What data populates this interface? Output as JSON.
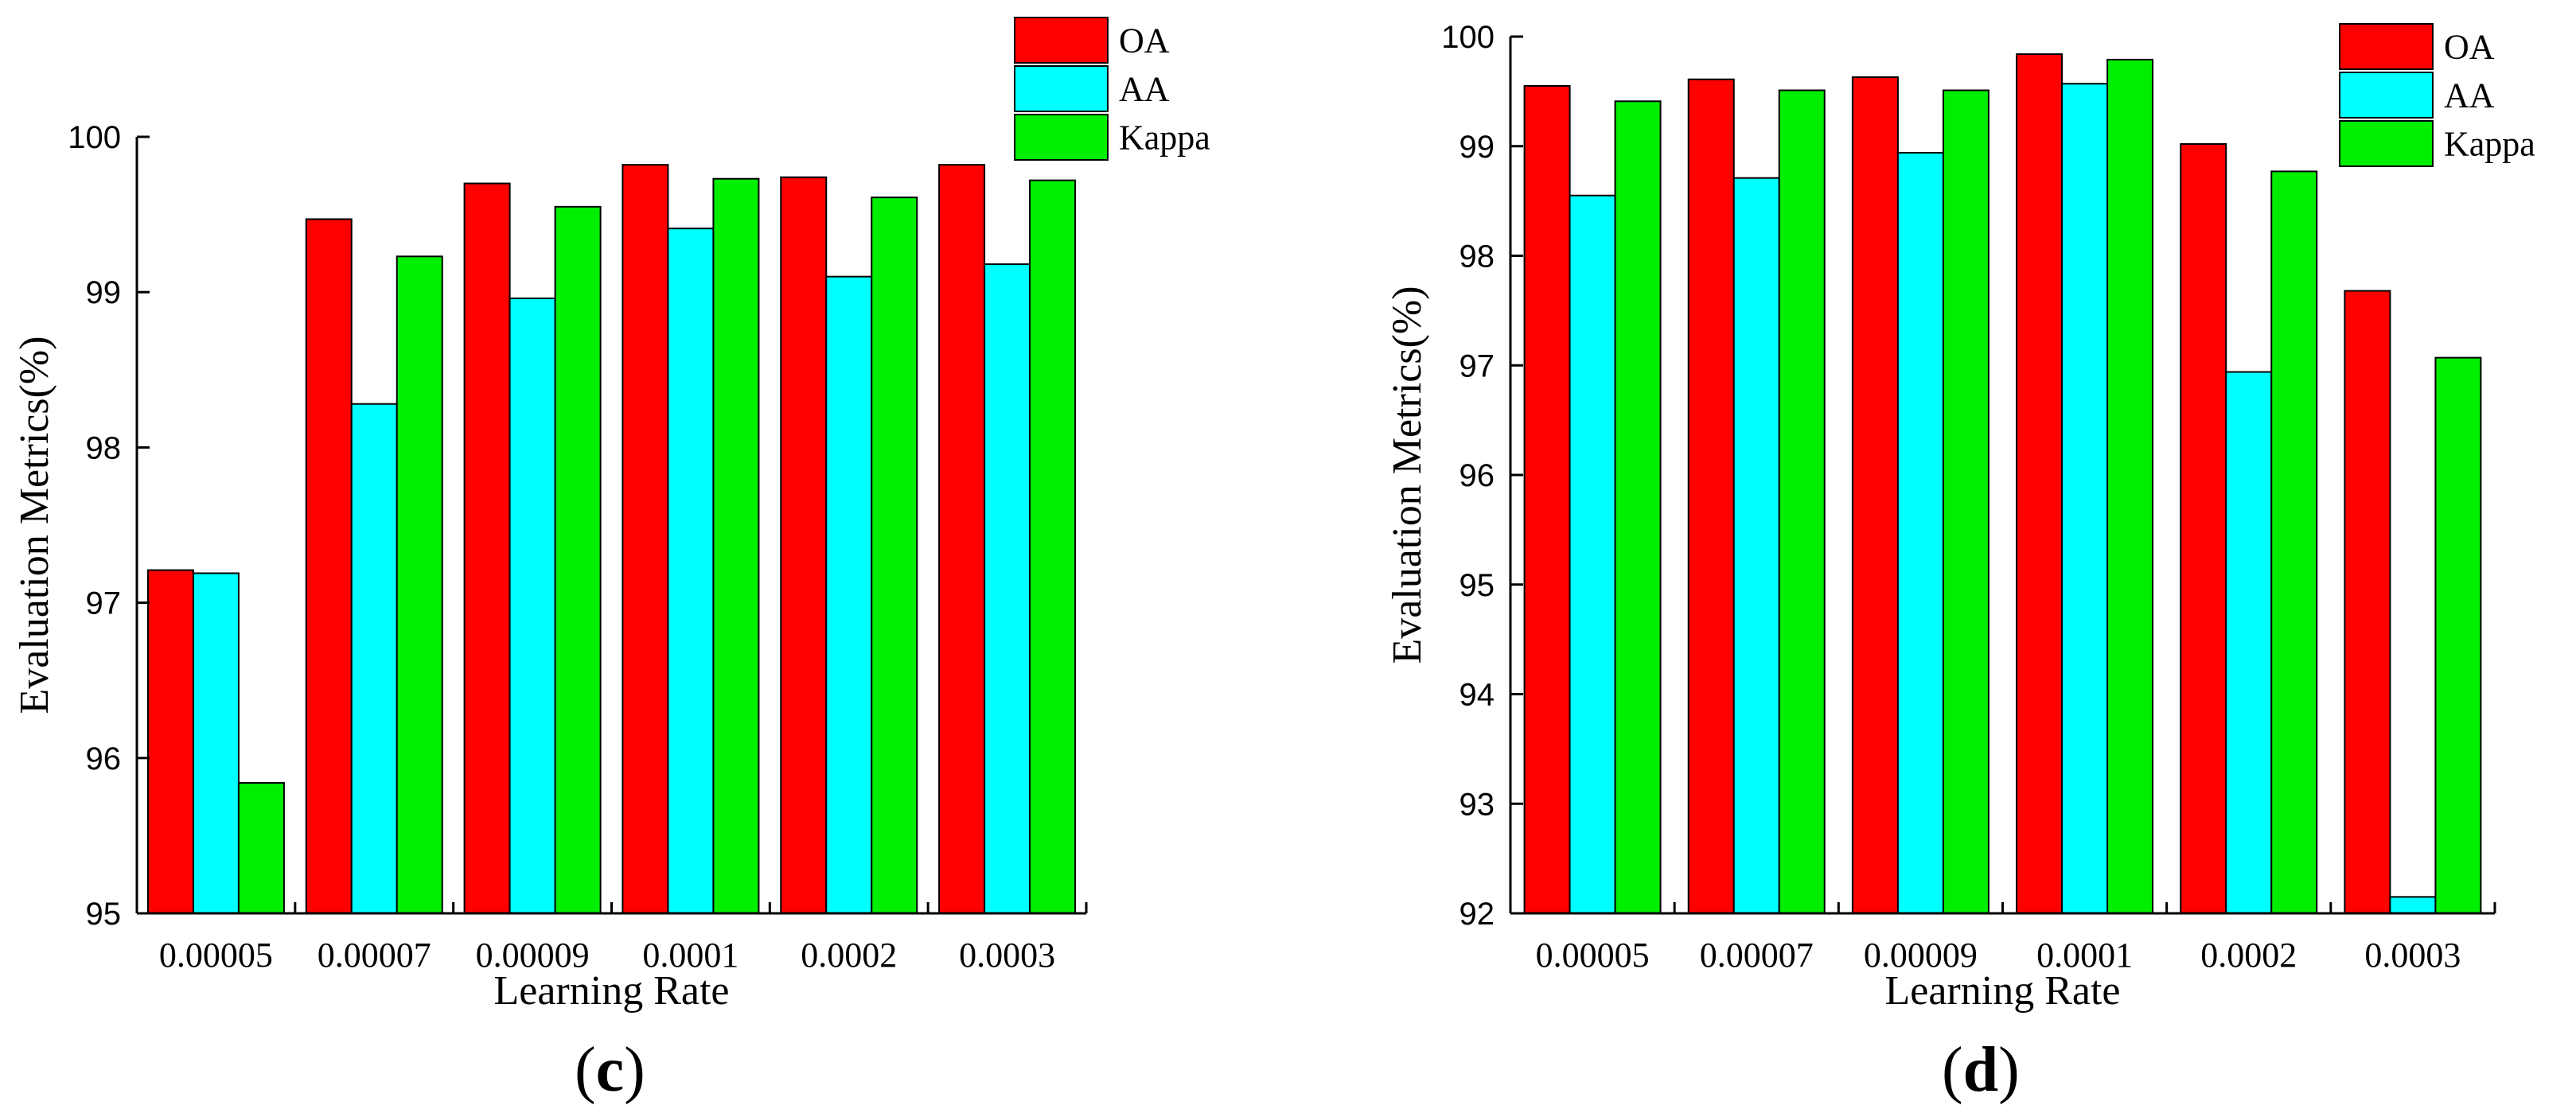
{
  "chart_data": [
    {
      "type": "bar",
      "panel": "c",
      "title": "",
      "xlabel": "Learning Rate",
      "ylabel": "Evaluation Metrics(%)",
      "ylim": [
        95,
        100
      ],
      "yticks": [
        "95",
        "96",
        "97",
        "98",
        "99",
        "100"
      ],
      "categories": [
        "0.00005",
        "0.00007",
        "0.00009",
        "0.0001",
        "0.0002",
        "0.0003"
      ],
      "series": [
        {
          "name": "OA",
          "color": "#ff0000",
          "values": [
            97.21,
            99.47,
            99.7,
            99.82,
            99.74,
            99.82
          ]
        },
        {
          "name": "AA",
          "color": "#00ffff",
          "values": [
            97.19,
            98.28,
            98.96,
            99.41,
            99.1,
            99.18
          ]
        },
        {
          "name": "Kappa",
          "color": "#00ee00",
          "values": [
            95.84,
            99.23,
            99.55,
            99.73,
            99.61,
            99.72
          ]
        }
      ],
      "legend": "top-right"
    },
    {
      "type": "bar",
      "panel": "d",
      "title": "",
      "xlabel": "Learning Rate",
      "ylabel": "Evaluation Metrics(%)",
      "ylim": [
        92,
        100
      ],
      "yticks": [
        "92",
        "93",
        "94",
        "95",
        "96",
        "97",
        "98",
        "99",
        "100"
      ],
      "categories": [
        "0.00005",
        "0.00007",
        "0.00009",
        "0.0001",
        "0.0002",
        "0.0003"
      ],
      "series": [
        {
          "name": "OA",
          "color": "#ff0000",
          "values": [
            99.55,
            99.61,
            99.63,
            99.84,
            99.02,
            97.68
          ]
        },
        {
          "name": "AA",
          "color": "#00ffff",
          "values": [
            98.55,
            98.71,
            98.94,
            99.57,
            96.94,
            92.15
          ]
        },
        {
          "name": "Kappa",
          "color": "#00ee00",
          "values": [
            99.41,
            99.51,
            99.51,
            99.79,
            98.77,
            97.07
          ]
        }
      ],
      "legend": "top-right"
    }
  ],
  "labels": {
    "c": "c",
    "d": "d"
  }
}
